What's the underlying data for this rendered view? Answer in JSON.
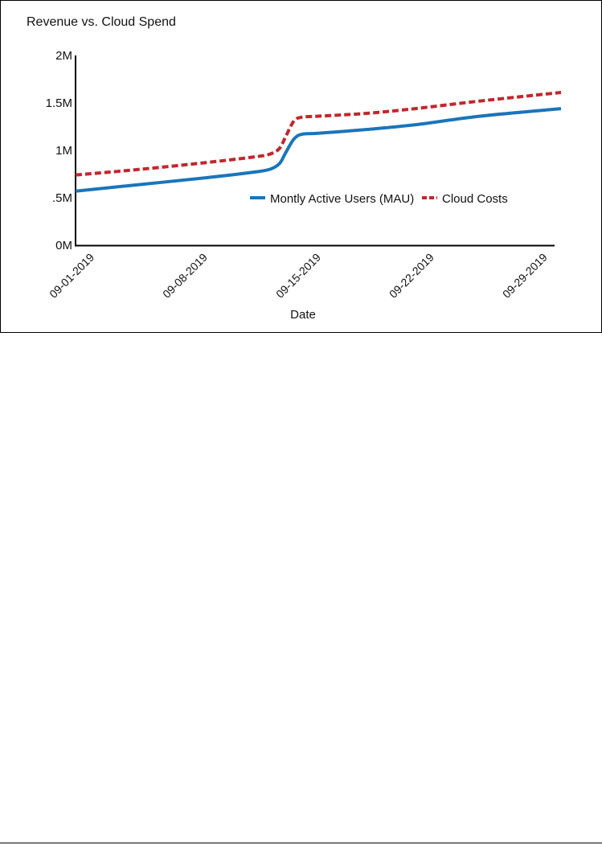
{
  "chart_data": {
    "type": "line",
    "title": "Revenue vs. Cloud Spend",
    "xlabel": "Date",
    "ylabel": "",
    "ylim": [
      0,
      2000000
    ],
    "yticks": [
      {
        "value": 0,
        "label": "0M"
      },
      {
        "value": 500000,
        "label": ".5M"
      },
      {
        "value": 1000000,
        "label": "1M"
      },
      {
        "value": 1500000,
        "label": "1.5M"
      },
      {
        "value": 2000000,
        "label": "2M"
      }
    ],
    "xlim": [
      "2019-09-01",
      "2019-10-01"
    ],
    "xticks": [
      {
        "value": "2019-09-01",
        "label": "09-01-2019"
      },
      {
        "value": "2019-09-08",
        "label": "09-08-2019"
      },
      {
        "value": "2019-09-15",
        "label": "09-15-2019"
      },
      {
        "value": "2019-09-22",
        "label": "09-22-2019"
      },
      {
        "value": "2019-09-29",
        "label": "09-29-2019"
      }
    ],
    "grid": false,
    "legend": "center-right",
    "series": [
      {
        "name": "Montly Active Users (MAU)",
        "color": "#1a75bb",
        "style": "solid",
        "points": [
          [
            "2019-09-01",
            570000
          ],
          [
            "2019-09-05",
            640000
          ],
          [
            "2019-09-09",
            710000
          ],
          [
            "2019-09-12",
            770000
          ],
          [
            "2019-09-13",
            800000
          ],
          [
            "2019-09-13.6",
            860000
          ],
          [
            "2019-09-14",
            980000
          ],
          [
            "2019-09-14.5",
            1120000
          ],
          [
            "2019-09-15",
            1170000
          ],
          [
            "2019-09-16",
            1180000
          ],
          [
            "2019-09-19",
            1220000
          ],
          [
            "2019-09-22",
            1270000
          ],
          [
            "2019-09-26",
            1360000
          ],
          [
            "2019-10-01",
            1440000
          ]
        ]
      },
      {
        "name": "Cloud Costs",
        "color": "#c1272d",
        "style": "dashed",
        "points": [
          [
            "2019-09-01",
            740000
          ],
          [
            "2019-09-05",
            800000
          ],
          [
            "2019-09-09",
            870000
          ],
          [
            "2019-09-12",
            930000
          ],
          [
            "2019-09-13",
            960000
          ],
          [
            "2019-09-13.6",
            1020000
          ],
          [
            "2019-09-14",
            1150000
          ],
          [
            "2019-09-14.5",
            1310000
          ],
          [
            "2019-09-15",
            1350000
          ],
          [
            "2019-09-16",
            1360000
          ],
          [
            "2019-09-19",
            1390000
          ],
          [
            "2019-09-22",
            1440000
          ],
          [
            "2019-09-26",
            1520000
          ],
          [
            "2019-10-01",
            1610000
          ]
        ]
      }
    ]
  }
}
